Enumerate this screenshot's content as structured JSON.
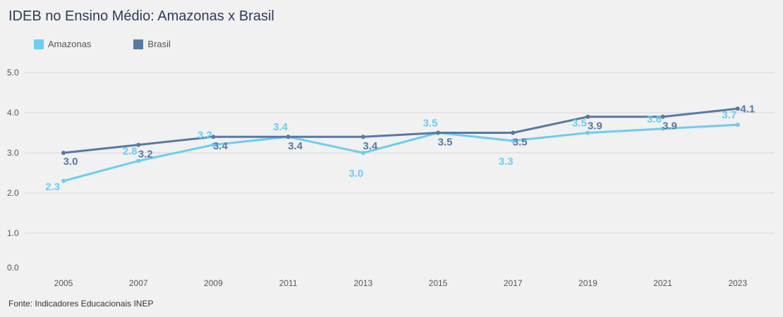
{
  "chart_data": {
    "type": "line",
    "title": "IDEB no Ensino Médio: Amazonas x Brasil",
    "categories": [
      "2005",
      "2007",
      "2009",
      "2011",
      "2013",
      "2015",
      "2017",
      "2019",
      "2021",
      "2023"
    ],
    "series": [
      {
        "name": "Amazonas",
        "color": "#6cccf2",
        "values": [
          2.3,
          2.8,
          3.2,
          3.4,
          3.0,
          3.5,
          3.3,
          3.5,
          3.6,
          3.7
        ]
      },
      {
        "name": "Brasil",
        "color": "#5779a3",
        "values": [
          3.0,
          3.2,
          3.4,
          3.4,
          3.4,
          3.5,
          3.5,
          3.9,
          3.9,
          4.1
        ]
      }
    ],
    "ylim": [
      0,
      5
    ],
    "yticks": [
      "0.0",
      "1.0",
      "2.0",
      "3.0",
      "4.0",
      "5.0"
    ],
    "xlabel": "",
    "ylabel": "",
    "grid": true,
    "legend": "top-left"
  },
  "footer": {
    "source": "Fonte: Indicadores Educacionais INEP"
  }
}
